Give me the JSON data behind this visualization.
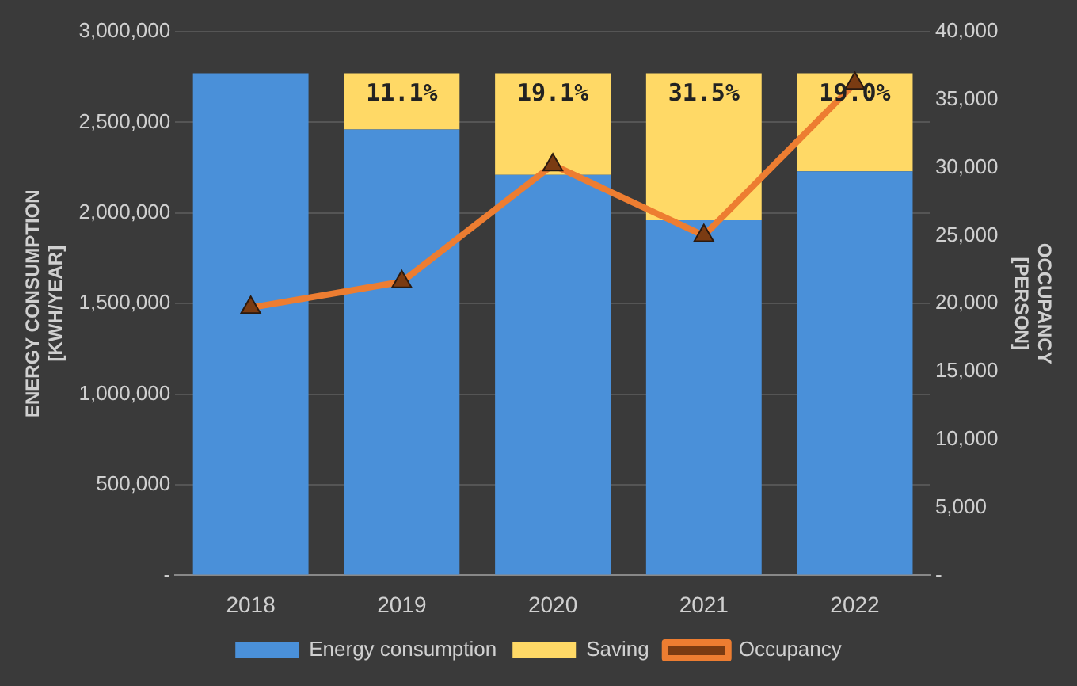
{
  "chart_data": {
    "type": "bar",
    "stacked": true,
    "categories": [
      "2018",
      "2019",
      "2020",
      "2021",
      "2022"
    ],
    "ylabel": "ENERGY CONSUMPTION\n[KWH/YEAR]",
    "y2label": "OCCUPANCY\n[PERSON]",
    "series": [
      {
        "name": "Energy consumption",
        "color": "#4a90d9",
        "values": [
          2770000,
          2460000,
          2210000,
          1960000,
          2230000
        ]
      },
      {
        "name": "Saving",
        "color": "#ffd966",
        "values": [
          null,
          310000,
          560000,
          810000,
          540000
        ]
      },
      {
        "name": "Occupancy",
        "type": "line",
        "axis": "y2",
        "color": "#ed7d31",
        "marker": "triangle",
        "values": [
          19700,
          21600,
          30200,
          25000,
          36200
        ]
      }
    ],
    "annotations": [
      {
        "text": "11.1%",
        "x": "2019",
        "y": 2770000
      },
      {
        "text": "19.1%",
        "x": "2020",
        "y": 2770000
      },
      {
        "text": "31.5%",
        "x": "2021",
        "y": 2770000
      },
      {
        "text": "19.0%",
        "x": "2022",
        "y": 2770000
      }
    ],
    "ylim": [
      0,
      3000000
    ],
    "yticks": [
      {
        "value": 0,
        "label": "-"
      },
      {
        "value": 500000,
        "label": "500,000"
      },
      {
        "value": 1000000,
        "label": "1,000,000"
      },
      {
        "value": 1500000,
        "label": "1,500,000"
      },
      {
        "value": 2000000,
        "label": "2,000,000"
      },
      {
        "value": 2500000,
        "label": "2,500,000"
      },
      {
        "value": 3000000,
        "label": "3,000,000"
      }
    ],
    "y2lim": [
      0,
      40000
    ],
    "y2ticks": [
      {
        "value": 0,
        "label": "-"
      },
      {
        "value": 5000,
        "label": "5,000"
      },
      {
        "value": 10000,
        "label": "10,000"
      },
      {
        "value": 15000,
        "label": "15,000"
      },
      {
        "value": 20000,
        "label": "20,000"
      },
      {
        "value": 25000,
        "label": "25,000"
      },
      {
        "value": 30000,
        "label": "30,000"
      },
      {
        "value": 35000,
        "label": "35,000"
      },
      {
        "value": 40000,
        "label": "40,000"
      }
    ],
    "grid": "y",
    "legend": "bottom"
  }
}
